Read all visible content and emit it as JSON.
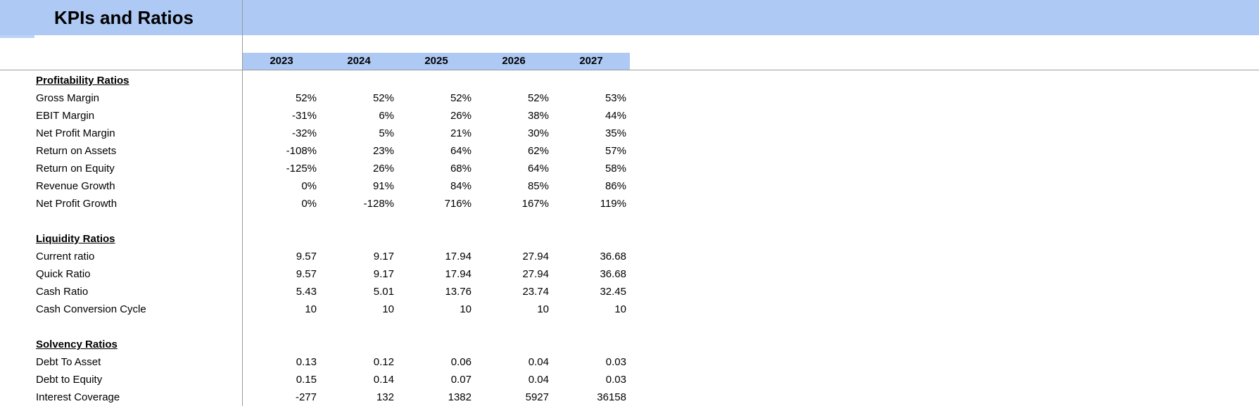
{
  "title": "KPIs and Ratios",
  "years": [
    "2023",
    "2024",
    "2025",
    "2026",
    "2027"
  ],
  "sections": [
    {
      "heading": "Profitability Ratios",
      "rows": [
        {
          "label": "Gross Margin",
          "values": [
            "52%",
            "52%",
            "52%",
            "52%",
            "53%"
          ]
        },
        {
          "label": "EBIT Margin",
          "values": [
            "-31%",
            "6%",
            "26%",
            "38%",
            "44%"
          ]
        },
        {
          "label": "Net Profit Margin",
          "values": [
            "-32%",
            "5%",
            "21%",
            "30%",
            "35%"
          ]
        },
        {
          "label": "Return on Assets",
          "values": [
            "-108%",
            "23%",
            "64%",
            "62%",
            "57%"
          ]
        },
        {
          "label": "Return on Equity",
          "values": [
            "-125%",
            "26%",
            "68%",
            "64%",
            "58%"
          ]
        },
        {
          "label": "Revenue Growth",
          "values": [
            "0%",
            "91%",
            "84%",
            "85%",
            "86%"
          ]
        },
        {
          "label": "Net Profit Growth",
          "values": [
            "0%",
            "-128%",
            "716%",
            "167%",
            "119%"
          ]
        }
      ]
    },
    {
      "heading": "Liquidity Ratios",
      "rows": [
        {
          "label": "Current ratio",
          "values": [
            "9.57",
            "9.17",
            "17.94",
            "27.94",
            "36.68"
          ]
        },
        {
          "label": "Quick Ratio",
          "values": [
            "9.57",
            "9.17",
            "17.94",
            "27.94",
            "36.68"
          ]
        },
        {
          "label": "Cash Ratio",
          "values": [
            "5.43",
            "5.01",
            "13.76",
            "23.74",
            "32.45"
          ]
        },
        {
          "label": "Cash Conversion Cycle",
          "values": [
            "10",
            "10",
            "10",
            "10",
            "10"
          ]
        }
      ]
    },
    {
      "heading": "Solvency Ratios",
      "rows": [
        {
          "label": "Debt To Asset",
          "values": [
            "0.13",
            "0.12",
            "0.06",
            "0.04",
            "0.03"
          ]
        },
        {
          "label": "Debt to Equity",
          "values": [
            "0.15",
            "0.14",
            "0.07",
            "0.04",
            "0.03"
          ]
        },
        {
          "label": "Interest Coverage",
          "values": [
            "-277",
            "132",
            "1382",
            "5927",
            "36158"
          ]
        }
      ]
    }
  ],
  "colors": {
    "banner-blue": "#aec9f4",
    "tab-blue": "#bcd3f8",
    "gridline-gray": "#999999",
    "text-black": "#000000"
  }
}
